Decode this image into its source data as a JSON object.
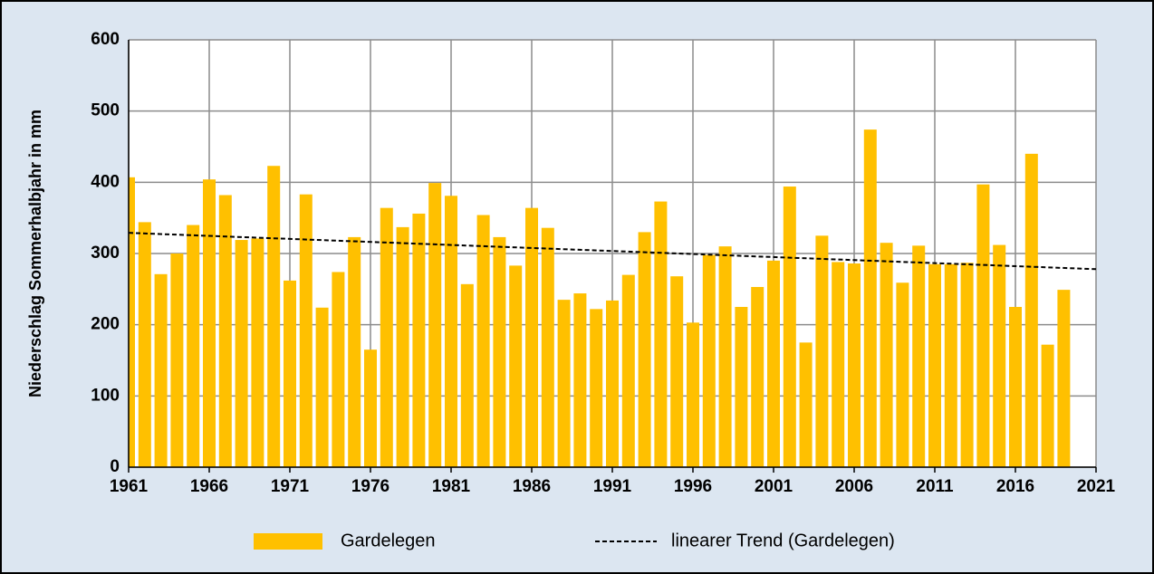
{
  "chart_data": {
    "type": "bar",
    "y_label": "Niederschlag Sommerhalbjahr in mm",
    "x": [
      1961,
      1962,
      1963,
      1964,
      1965,
      1966,
      1967,
      1968,
      1969,
      1970,
      1971,
      1972,
      1973,
      1974,
      1975,
      1976,
      1977,
      1978,
      1979,
      1980,
      1981,
      1982,
      1983,
      1984,
      1985,
      1986,
      1987,
      1988,
      1989,
      1990,
      1991,
      1992,
      1993,
      1994,
      1995,
      1996,
      1997,
      1998,
      1999,
      2000,
      2001,
      2002,
      2003,
      2004,
      2005,
      2006,
      2007,
      2008,
      2009,
      2010,
      2011,
      2012,
      2013,
      2014,
      2015,
      2016,
      2017,
      2018,
      2019
    ],
    "series": [
      {
        "name": "Gardelegen",
        "color": "#ffc000",
        "values": [
          407,
          344,
          271,
          300,
          340,
          404,
          382,
          319,
          321,
          423,
          262,
          383,
          224,
          274,
          323,
          165,
          364,
          337,
          356,
          399,
          381,
          257,
          354,
          323,
          283,
          364,
          336,
          235,
          244,
          222,
          234,
          270,
          330,
          373,
          268,
          203,
          298,
          310,
          225,
          253,
          290,
          394,
          175,
          325,
          288,
          286,
          474,
          315,
          259,
          311,
          285,
          285,
          287,
          397,
          312,
          225,
          440,
          172,
          249
        ]
      },
      {
        "name": "linearer Trend (Gardelegen)",
        "type": "line",
        "color": "#000000",
        "dashed": true,
        "x": [
          1961,
          2021
        ],
        "values": [
          329,
          278
        ]
      }
    ],
    "xlim": [
      1961,
      2021
    ],
    "xticks": [
      1961,
      1966,
      1971,
      1976,
      1981,
      1986,
      1991,
      1996,
      2001,
      2006,
      2011,
      2016,
      2021
    ],
    "ylim": [
      0,
      600
    ],
    "yticks": [
      0,
      100,
      200,
      300,
      400,
      500,
      600
    ],
    "grid": true,
    "legend": "bottom"
  }
}
